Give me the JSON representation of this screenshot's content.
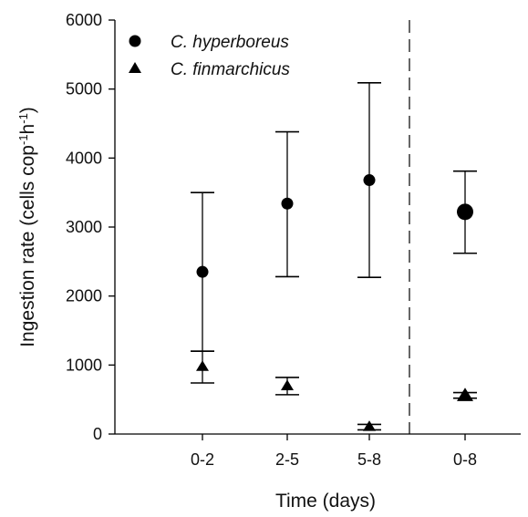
{
  "chart_data": {
    "type": "scatter",
    "xlabel": "Time (days)",
    "ylabel": "Ingestion rate (cells cop",
    "ylabel_sup1": "-1",
    "ylabel_mid": "h",
    "ylabel_sup2": "-1",
    "ylabel_end": ")",
    "ylim": [
      0,
      6000
    ],
    "yticks": [
      0,
      1000,
      2000,
      3000,
      4000,
      5000,
      6000
    ],
    "categories": [
      "0-2",
      "2-5",
      "5-8",
      "0-8"
    ],
    "separator_after_category": "5-8",
    "legend_position": "top-left",
    "series": [
      {
        "name": "C. hyperboreus",
        "marker": "circle",
        "color": "#000000",
        "points": [
          {
            "category": "0-2",
            "y": 2350,
            "err_low": 1200,
            "err_high": 3500
          },
          {
            "category": "2-5",
            "y": 3340,
            "err_low": 2280,
            "err_high": 4380
          },
          {
            "category": "5-8",
            "y": 3680,
            "err_low": 2270,
            "err_high": 5090
          },
          {
            "category": "0-8",
            "y": 3220,
            "err_low": 2620,
            "err_high": 3810
          }
        ]
      },
      {
        "name": "C. finmarchicus",
        "marker": "triangle",
        "color": "#000000",
        "points": [
          {
            "category": "0-2",
            "y": 980,
            "err_low": 740,
            "err_high": 1200
          },
          {
            "category": "2-5",
            "y": 700,
            "err_low": 570,
            "err_high": 820
          },
          {
            "category": "5-8",
            "y": 110,
            "err_low": 60,
            "err_high": 140
          },
          {
            "category": "0-8",
            "y": 560,
            "err_low": 520,
            "err_high": 600
          }
        ]
      }
    ]
  }
}
